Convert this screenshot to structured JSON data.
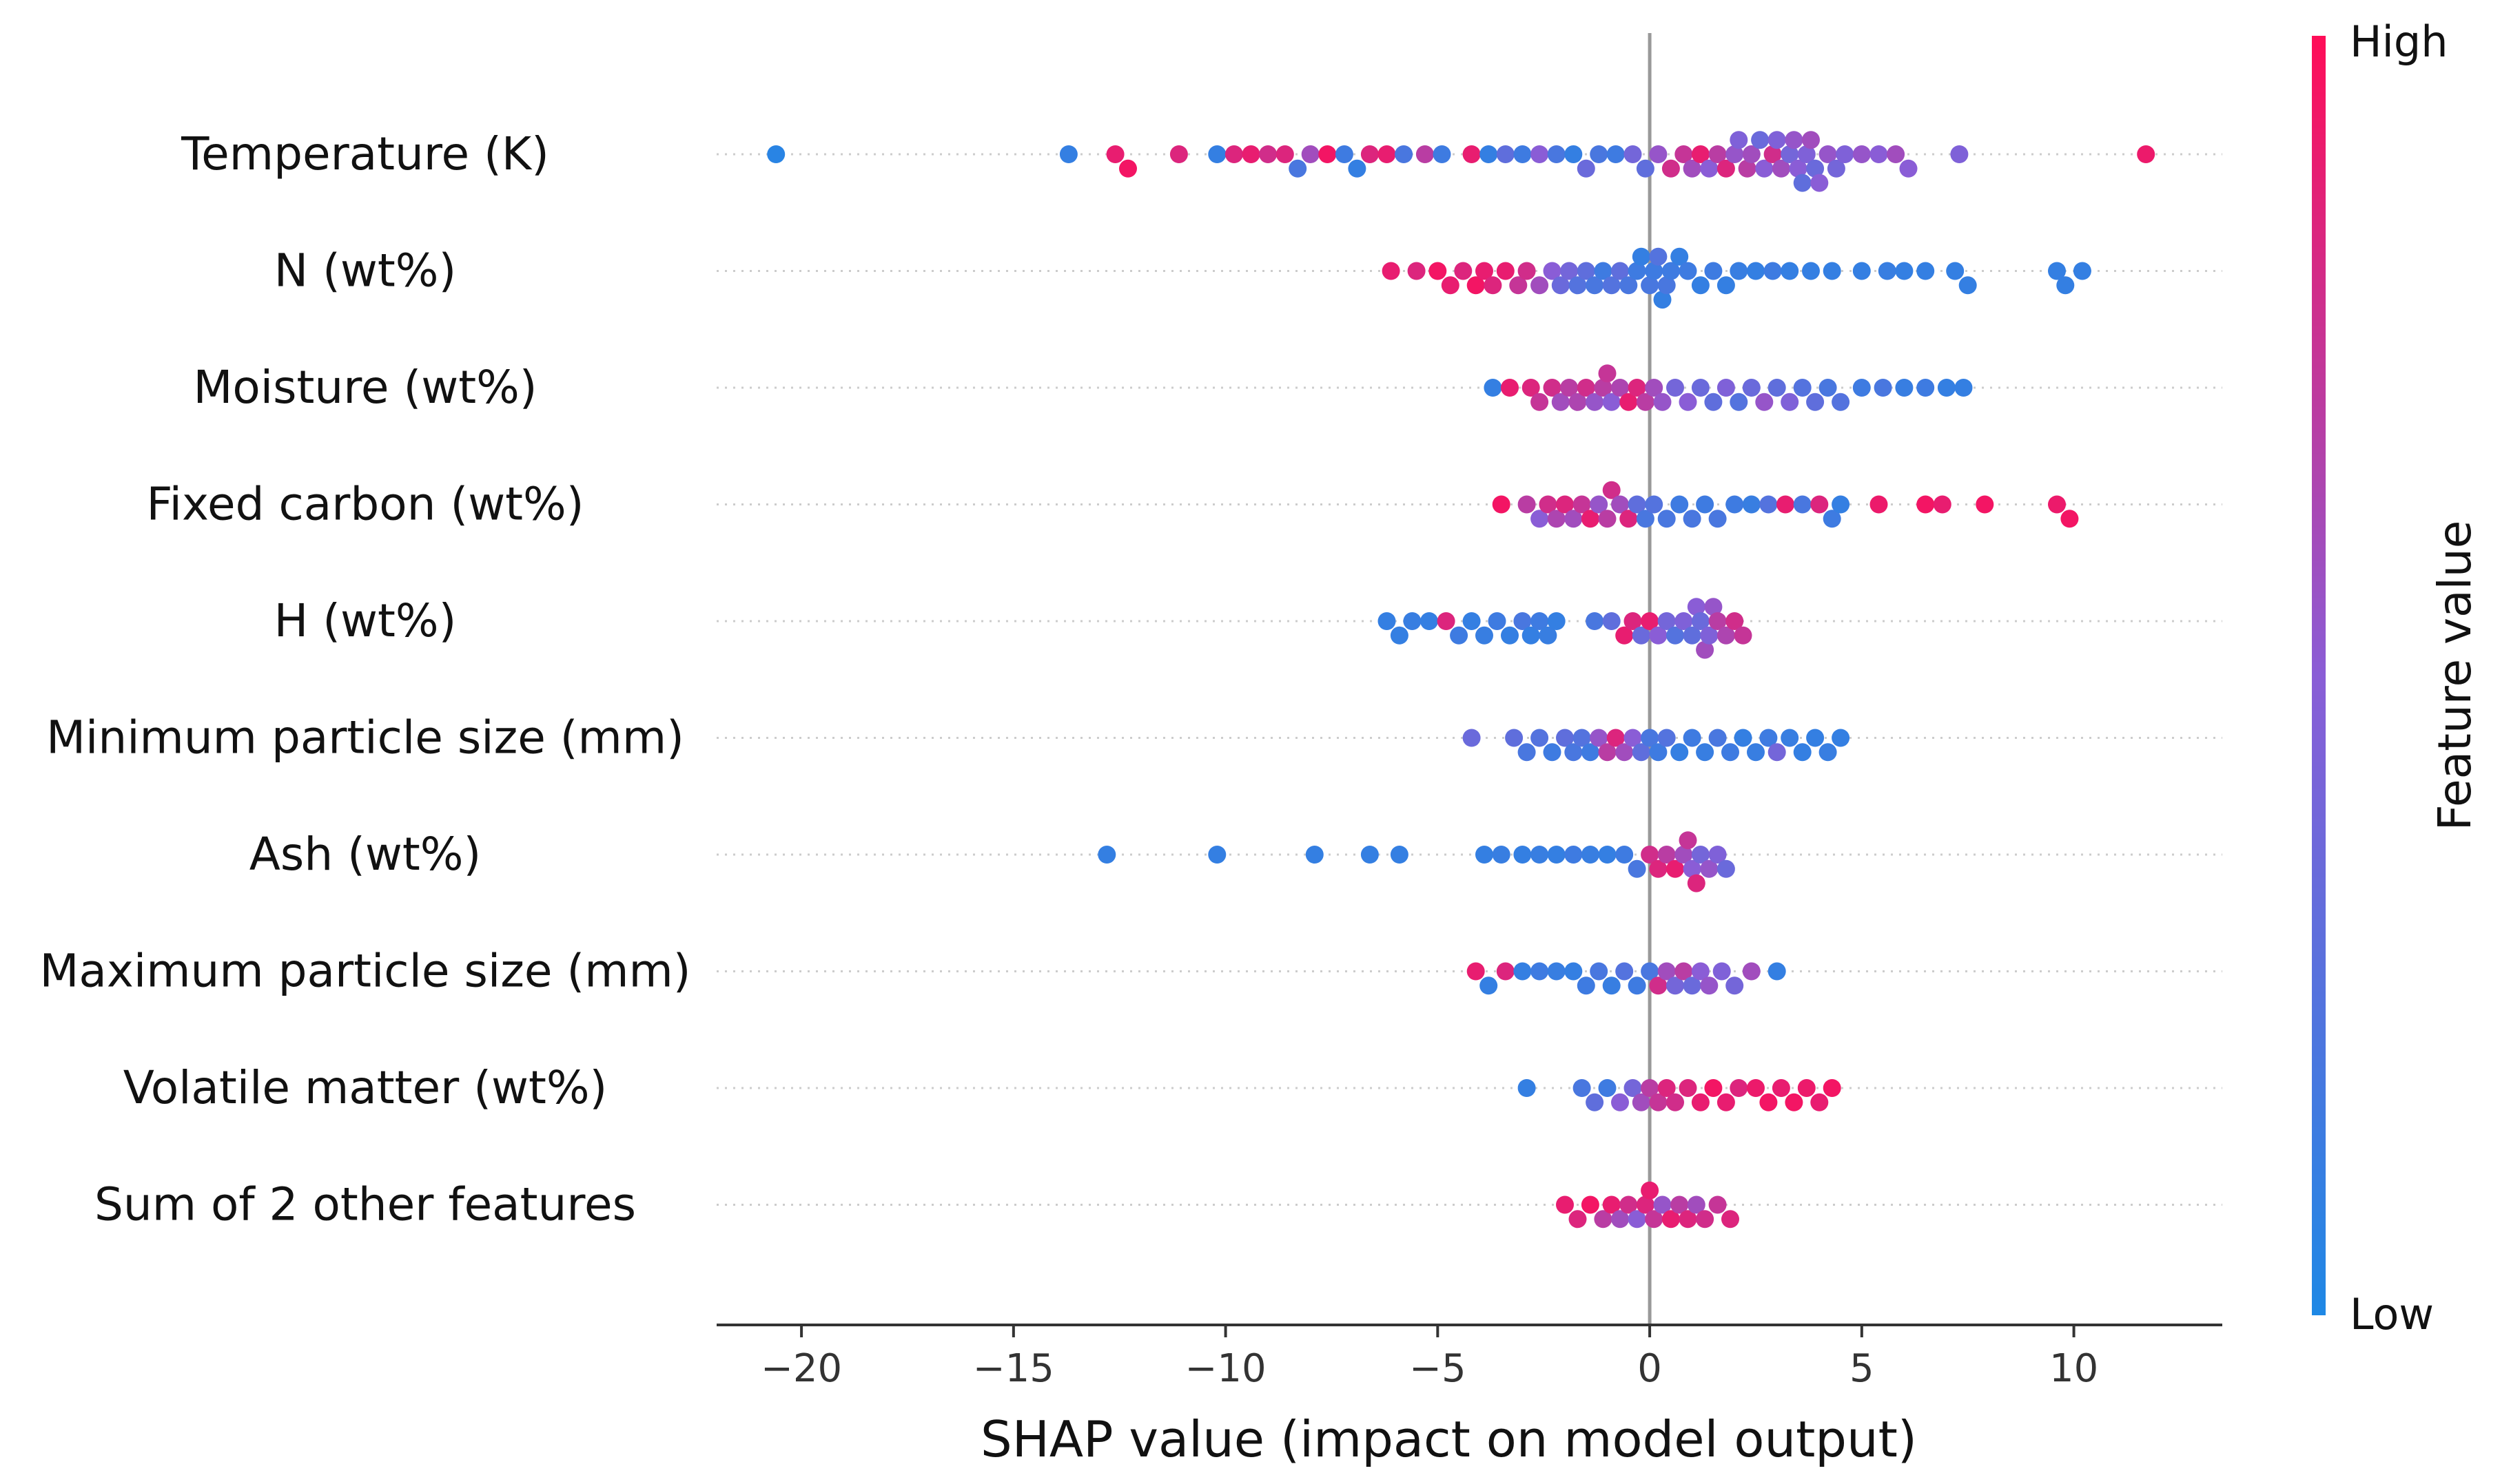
{
  "chart_data": {
    "type": "scatter",
    "subtype": "beeswarm",
    "title": "",
    "xlabel": "SHAP value (impact on model output)",
    "ylabel": "",
    "xlim": [
      -22,
      13.5
    ],
    "xticks": [
      -20,
      -15,
      -10,
      -5,
      0,
      5,
      10
    ],
    "xtick_labels": [
      "−20",
      "−15",
      "−10",
      "−5",
      "0",
      "5",
      "10"
    ],
    "features": [
      {
        "name": "Temperature (K)",
        "values": [
          -20.6,
          -13.7,
          -12.6,
          -12.3,
          -11.1,
          -10.2,
          -9.8,
          -9.4,
          -9.0,
          -8.6,
          -8.3,
          -8.0,
          -7.6,
          -7.2,
          -6.9,
          -6.6,
          -6.2,
          -5.8,
          -5.3,
          -4.9,
          -4.2,
          -3.8,
          -3.4,
          -3.0,
          -2.6,
          -2.2,
          -1.8,
          -1.5,
          -1.2,
          -0.8,
          -0.4,
          -0.1,
          0.2,
          0.5,
          0.8,
          1.0,
          1.2,
          1.4,
          1.6,
          1.8,
          2.0,
          2.1,
          2.3,
          2.4,
          2.6,
          2.7,
          2.9,
          3.0,
          3.1,
          3.3,
          3.4,
          3.5,
          3.6,
          3.7,
          3.8,
          3.9,
          4.0,
          4.2,
          4.4,
          4.6,
          5.0,
          5.4,
          5.8,
          6.1,
          7.3,
          11.7
        ],
        "colors": [
          0.05,
          0.1,
          0.9,
          0.95,
          0.85,
          0.1,
          0.85,
          0.9,
          0.8,
          0.85,
          0.2,
          0.6,
          0.95,
          0.15,
          0.1,
          0.85,
          0.9,
          0.2,
          0.7,
          0.15,
          0.9,
          0.1,
          0.3,
          0.15,
          0.5,
          0.2,
          0.1,
          0.35,
          0.2,
          0.15,
          0.4,
          0.3,
          0.55,
          0.8,
          0.75,
          0.6,
          0.9,
          0.5,
          0.7,
          0.85,
          0.55,
          0.45,
          0.7,
          0.6,
          0.35,
          0.5,
          0.8,
          0.45,
          0.6,
          0.4,
          0.55,
          0.5,
          0.3,
          0.45,
          0.6,
          0.35,
          0.5,
          0.55,
          0.4,
          0.45,
          0.55,
          0.5,
          0.6,
          0.5,
          0.45,
          0.92
        ]
      },
      {
        "name": "N (wt%)",
        "values": [
          -6.1,
          -5.5,
          -5.0,
          -4.7,
          -4.4,
          -4.1,
          -3.9,
          -3.7,
          -3.4,
          -3.1,
          -2.9,
          -2.6,
          -2.3,
          -2.1,
          -1.9,
          -1.7,
          -1.5,
          -1.3,
          -1.1,
          -0.9,
          -0.7,
          -0.5,
          -0.3,
          -0.2,
          0.0,
          0.1,
          0.2,
          0.3,
          0.4,
          0.5,
          0.7,
          0.9,
          1.2,
          1.5,
          1.8,
          2.1,
          2.5,
          2.9,
          3.3,
          3.8,
          4.3,
          5.0,
          5.6,
          6.0,
          6.5,
          7.2,
          7.5,
          9.6,
          9.8,
          10.2
        ],
        "colors": [
          0.9,
          0.85,
          0.95,
          0.9,
          0.85,
          0.95,
          0.9,
          0.85,
          0.9,
          0.75,
          0.8,
          0.6,
          0.5,
          0.35,
          0.4,
          0.25,
          0.3,
          0.2,
          0.15,
          0.25,
          0.3,
          0.2,
          0.15,
          0.1,
          0.2,
          0.15,
          0.25,
          0.1,
          0.2,
          0.15,
          0.1,
          0.15,
          0.1,
          0.15,
          0.1,
          0.12,
          0.1,
          0.15,
          0.1,
          0.1,
          0.1,
          0.1,
          0.12,
          0.1,
          0.1,
          0.1,
          0.1,
          0.1,
          0.1,
          0.1
        ]
      },
      {
        "name": "Moisture (wt%)",
        "values": [
          -3.7,
          -3.3,
          -2.8,
          -2.6,
          -2.3,
          -2.1,
          -1.9,
          -1.7,
          -1.5,
          -1.3,
          -1.1,
          -1.0,
          -0.9,
          -0.7,
          -0.5,
          -0.3,
          -0.1,
          0.1,
          0.3,
          0.6,
          0.9,
          1.2,
          1.5,
          1.8,
          2.1,
          2.4,
          2.7,
          3.0,
          3.3,
          3.6,
          3.9,
          4.2,
          4.5,
          5.0,
          5.5,
          6.0,
          6.5,
          7.0,
          7.4
        ],
        "colors": [
          0.1,
          0.9,
          0.85,
          0.75,
          0.8,
          0.6,
          0.7,
          0.65,
          0.8,
          0.55,
          0.7,
          0.75,
          0.5,
          0.65,
          0.9,
          0.85,
          0.7,
          0.6,
          0.55,
          0.4,
          0.5,
          0.35,
          0.3,
          0.45,
          0.25,
          0.35,
          0.55,
          0.3,
          0.45,
          0.25,
          0.3,
          0.2,
          0.25,
          0.15,
          0.2,
          0.12,
          0.15,
          0.1,
          0.1
        ]
      },
      {
        "name": "Fixed carbon (wt%)",
        "values": [
          -3.5,
          -2.9,
          -2.6,
          -2.4,
          -2.2,
          -2.0,
          -1.8,
          -1.6,
          -1.4,
          -1.2,
          -1.0,
          -0.9,
          -0.7,
          -0.5,
          -0.3,
          -0.1,
          0.1,
          0.4,
          0.7,
          1.0,
          1.3,
          1.6,
          2.0,
          2.4,
          2.8,
          3.2,
          3.6,
          4.0,
          4.3,
          4.5,
          5.4,
          6.5,
          6.9,
          7.9,
          9.6,
          9.9
        ],
        "colors": [
          0.95,
          0.7,
          0.5,
          0.8,
          0.65,
          0.85,
          0.6,
          0.75,
          0.9,
          0.55,
          0.7,
          0.8,
          0.6,
          0.85,
          0.3,
          0.2,
          0.25,
          0.2,
          0.15,
          0.2,
          0.15,
          0.2,
          0.15,
          0.12,
          0.25,
          0.9,
          0.2,
          0.85,
          0.15,
          0.1,
          0.92,
          0.95,
          0.9,
          0.95,
          0.92,
          0.95
        ]
      },
      {
        "name": "H (wt%)",
        "values": [
          -6.2,
          -5.9,
          -5.6,
          -5.2,
          -4.8,
          -4.5,
          -4.2,
          -3.9,
          -3.6,
          -3.3,
          -3.0,
          -2.8,
          -2.6,
          -2.4,
          -2.2,
          -1.3,
          -0.9,
          -0.6,
          -0.4,
          -0.2,
          0.0,
          0.2,
          0.4,
          0.6,
          0.8,
          1.0,
          1.1,
          1.2,
          1.3,
          1.4,
          1.5,
          1.6,
          1.8,
          2.0,
          2.2
        ],
        "colors": [
          0.1,
          0.1,
          0.12,
          0.1,
          0.85,
          0.15,
          0.1,
          0.12,
          0.15,
          0.1,
          0.2,
          0.1,
          0.15,
          0.12,
          0.1,
          0.2,
          0.3,
          0.9,
          0.85,
          0.35,
          0.9,
          0.5,
          0.4,
          0.25,
          0.45,
          0.3,
          0.5,
          0.35,
          0.6,
          0.45,
          0.55,
          0.7,
          0.65,
          0.8,
          0.75
        ]
      },
      {
        "name": "Minimum particle size (mm)",
        "values": [
          -4.2,
          -3.2,
          -2.9,
          -2.6,
          -2.3,
          -2.0,
          -1.8,
          -1.6,
          -1.4,
          -1.2,
          -1.0,
          -0.8,
          -0.6,
          -0.4,
          -0.2,
          0.0,
          0.2,
          0.4,
          0.7,
          1.0,
          1.3,
          1.6,
          1.9,
          2.2,
          2.5,
          2.8,
          3.0,
          3.3,
          3.6,
          3.9,
          4.2,
          4.5
        ],
        "colors": [
          0.35,
          0.3,
          0.2,
          0.25,
          0.15,
          0.3,
          0.2,
          0.25,
          0.15,
          0.55,
          0.7,
          0.85,
          0.6,
          0.5,
          0.3,
          0.2,
          0.15,
          0.25,
          0.1,
          0.15,
          0.12,
          0.2,
          0.15,
          0.1,
          0.12,
          0.15,
          0.4,
          0.12,
          0.1,
          0.1,
          0.12,
          0.1
        ]
      },
      {
        "name": "Ash (wt%)",
        "values": [
          -12.8,
          -10.2,
          -7.9,
          -6.6,
          -5.9,
          -3.9,
          -3.5,
          -3.0,
          -2.6,
          -2.2,
          -1.8,
          -1.4,
          -1.0,
          -0.6,
          -0.3,
          0.0,
          0.2,
          0.4,
          0.6,
          0.8,
          0.9,
          1.0,
          1.1,
          1.2,
          1.4,
          1.6,
          1.8
        ],
        "colors": [
          0.1,
          0.1,
          0.1,
          0.1,
          0.1,
          0.1,
          0.12,
          0.1,
          0.12,
          0.1,
          0.15,
          0.12,
          0.1,
          0.15,
          0.2,
          0.8,
          0.85,
          0.7,
          0.9,
          0.6,
          0.75,
          0.5,
          0.85,
          0.4,
          0.55,
          0.45,
          0.35
        ]
      },
      {
        "name": "Maximum particle size (mm)",
        "values": [
          -4.1,
          -3.8,
          -3.4,
          -3.0,
          -2.6,
          -2.2,
          -1.8,
          -1.5,
          -1.2,
          -0.9,
          -0.6,
          -0.3,
          0.0,
          0.2,
          0.4,
          0.6,
          0.8,
          1.0,
          1.2,
          1.4,
          1.7,
          2.0,
          2.4,
          3.0
        ],
        "colors": [
          0.9,
          0.1,
          0.85,
          0.1,
          0.15,
          0.12,
          0.1,
          0.15,
          0.2,
          0.12,
          0.25,
          0.15,
          0.2,
          0.8,
          0.6,
          0.4,
          0.7,
          0.35,
          0.5,
          0.55,
          0.45,
          0.4,
          0.6,
          0.1
        ]
      },
      {
        "name": "Volatile matter (wt%)",
        "values": [
          -2.9,
          -1.6,
          -1.3,
          -1.0,
          -0.7,
          -0.4,
          -0.2,
          0.0,
          0.2,
          0.4,
          0.6,
          0.9,
          1.2,
          1.5,
          1.8,
          2.1,
          2.5,
          2.8,
          3.1,
          3.4,
          3.7,
          4.0,
          4.3
        ],
        "colors": [
          0.1,
          0.2,
          0.3,
          0.15,
          0.5,
          0.4,
          0.6,
          0.7,
          0.75,
          0.85,
          0.8,
          0.85,
          0.9,
          0.95,
          0.9,
          0.85,
          0.92,
          0.95,
          0.9,
          0.95,
          0.92,
          0.9,
          0.95
        ]
      },
      {
        "name": "Sum of 2 other features",
        "values": [
          -2.0,
          -1.7,
          -1.4,
          -1.1,
          -0.9,
          -0.7,
          -0.5,
          -0.3,
          -0.1,
          0.0,
          0.1,
          0.3,
          0.5,
          0.7,
          0.9,
          1.1,
          1.3,
          1.6,
          1.9
        ],
        "colors": [
          0.9,
          0.85,
          0.95,
          0.7,
          0.9,
          0.6,
          0.8,
          0.5,
          0.85,
          0.9,
          0.75,
          0.55,
          0.9,
          0.7,
          0.85,
          0.6,
          0.8,
          0.75,
          0.85
        ]
      }
    ],
    "colorbar": {
      "title": "Feature value",
      "high_label": "High",
      "low_label": "Low",
      "low_color": "#1e88e5",
      "high_color": "#ff0d57"
    },
    "zero_line": 0,
    "legend_position": "right"
  }
}
